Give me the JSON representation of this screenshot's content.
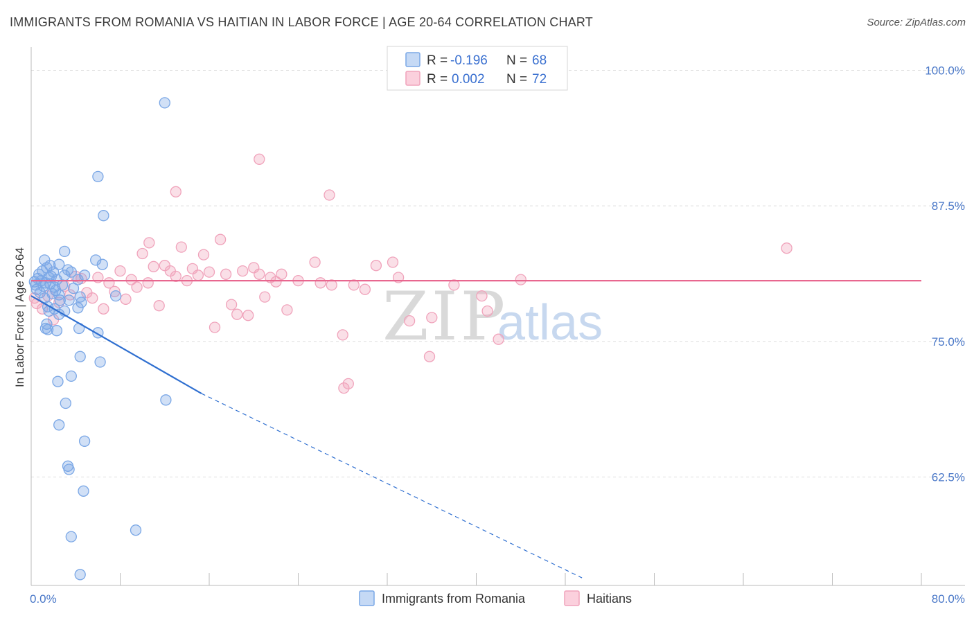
{
  "title": "IMMIGRANTS FROM ROMANIA VS HAITIAN IN LABOR FORCE | AGE 20-64 CORRELATION CHART",
  "source": "Source: ZipAtlas.com",
  "watermark": {
    "zip": "ZIP",
    "atlas": "atlas"
  },
  "colors": {
    "blue": "#7aa7e6",
    "blue_line": "#2f6fd0",
    "pink": "#f0a3bb",
    "pink_line": "#e8678f",
    "grid": "#dddddd"
  },
  "chart_data": {
    "type": "scatter",
    "title": "IMMIGRANTS FROM ROMANIA VS HAITIAN IN LABOR FORCE | AGE 20-64 CORRELATION CHART",
    "ylabel": "In Labor Force | Age 20-64",
    "xlim": [
      0,
      80
    ],
    "ylim": [
      52.5,
      101.5
    ],
    "x_tick_labels": [
      {
        "v": 0,
        "label": "0.0%"
      },
      {
        "v": 80,
        "label": "80.0%"
      }
    ],
    "y_tick_labels": [
      {
        "v": 100,
        "label": "100.0%"
      },
      {
        "v": 87.5,
        "label": "87.5%"
      },
      {
        "v": 75,
        "label": "75.0%"
      },
      {
        "v": 62.5,
        "label": "62.5%"
      }
    ],
    "legend": [
      {
        "r_label": "R = ",
        "r_value": "-0.196",
        "n_label": "N = ",
        "n_value": "68"
      },
      {
        "r_label": "R = ",
        "r_value": "0.002",
        "n_label": "N = ",
        "n_value": "72"
      }
    ],
    "series": [
      {
        "name": "Immigrants from Romania",
        "trend": {
          "solid": [
            [
              0,
              79.2
            ],
            [
              15.3,
              70.2
            ]
          ],
          "dashed": [
            [
              15.3,
              70.2
            ],
            [
              49.5,
              53.2
            ]
          ]
        },
        "points": [
          [
            0.3,
            80.5
          ],
          [
            0.4,
            80.2
          ],
          [
            0.5,
            79.8
          ],
          [
            0.6,
            80.8
          ],
          [
            0.7,
            81.2
          ],
          [
            0.8,
            79.5
          ],
          [
            0.9,
            80.6
          ],
          [
            1.0,
            81.5
          ],
          [
            1.1,
            80.1
          ],
          [
            1.2,
            79.0
          ],
          [
            1.3,
            80.4
          ],
          [
            1.4,
            81.8
          ],
          [
            1.5,
            78.2
          ],
          [
            1.6,
            80.9
          ],
          [
            1.7,
            80.3
          ],
          [
            1.8,
            81.0
          ],
          [
            1.9,
            79.4
          ],
          [
            2.0,
            81.4
          ],
          [
            2.1,
            80.0
          ],
          [
            2.2,
            79.7
          ],
          [
            2.3,
            80.7
          ],
          [
            2.5,
            79.3
          ],
          [
            2.6,
            78.8
          ],
          [
            2.8,
            80.2
          ],
          [
            3.0,
            81.1
          ],
          [
            1.2,
            82.5
          ],
          [
            1.7,
            82.0
          ],
          [
            2.5,
            82.1
          ],
          [
            3.0,
            83.3
          ],
          [
            3.3,
            81.6
          ],
          [
            3.6,
            81.4
          ],
          [
            3.8,
            79.9
          ],
          [
            4.2,
            80.7
          ],
          [
            4.4,
            79.1
          ],
          [
            4.5,
            78.6
          ],
          [
            2.1,
            78.0
          ],
          [
            2.5,
            77.5
          ],
          [
            3.0,
            77.8
          ],
          [
            1.6,
            77.8
          ],
          [
            1.4,
            76.6
          ],
          [
            1.3,
            76.2
          ],
          [
            1.5,
            76.1
          ],
          [
            2.3,
            76.0
          ],
          [
            3.4,
            78.8
          ],
          [
            4.2,
            78.1
          ],
          [
            4.8,
            81.1
          ],
          [
            5.8,
            82.5
          ],
          [
            6.4,
            82.1
          ],
          [
            7.6,
            79.2
          ],
          [
            4.3,
            76.2
          ],
          [
            6.0,
            75.8
          ],
          [
            4.4,
            73.6
          ],
          [
            6.2,
            73.1
          ],
          [
            2.4,
            71.3
          ],
          [
            3.6,
            71.8
          ],
          [
            3.1,
            69.3
          ],
          [
            2.5,
            67.3
          ],
          [
            4.8,
            65.8
          ],
          [
            3.3,
            63.5
          ],
          [
            3.4,
            63.2
          ],
          [
            4.7,
            61.2
          ],
          [
            3.6,
            57.0
          ],
          [
            4.4,
            53.5
          ],
          [
            6.0,
            90.2
          ],
          [
            12.0,
            97.0
          ],
          [
            6.5,
            86.6
          ],
          [
            12.1,
            69.6
          ],
          [
            9.4,
            57.6
          ]
        ]
      },
      {
        "name": "Haitians",
        "trend": {
          "solid": [
            [
              0,
              80.6
            ],
            [
              80,
              80.6
            ]
          ]
        },
        "points": [
          [
            0.3,
            79.0
          ],
          [
            0.5,
            78.5
          ],
          [
            1.0,
            78.0
          ],
          [
            1.5,
            79.2
          ],
          [
            2.0,
            77.0
          ],
          [
            2.5,
            78.6
          ],
          [
            3.0,
            80.1
          ],
          [
            3.5,
            79.3
          ],
          [
            4.0,
            81.0
          ],
          [
            4.5,
            80.8
          ],
          [
            5.0,
            79.5
          ],
          [
            5.5,
            79.0
          ],
          [
            6.0,
            80.9
          ],
          [
            6.5,
            78.0
          ],
          [
            7.0,
            80.4
          ],
          [
            7.5,
            79.6
          ],
          [
            8.0,
            81.5
          ],
          [
            8.5,
            78.9
          ],
          [
            9.0,
            80.7
          ],
          [
            9.5,
            80.0
          ],
          [
            10.0,
            83.1
          ],
          [
            10.5,
            80.4
          ],
          [
            11.0,
            81.9
          ],
          [
            11.5,
            78.3
          ],
          [
            12.0,
            82.0
          ],
          [
            12.5,
            81.5
          ],
          [
            13.0,
            81.0
          ],
          [
            13.5,
            83.7
          ],
          [
            14.0,
            80.6
          ],
          [
            14.5,
            81.7
          ],
          [
            15.0,
            81.1
          ],
          [
            15.5,
            83.0
          ],
          [
            16.0,
            81.4
          ],
          [
            16.5,
            76.3
          ],
          [
            17.0,
            84.4
          ],
          [
            17.5,
            81.2
          ],
          [
            18.0,
            78.4
          ],
          [
            18.5,
            77.5
          ],
          [
            19.0,
            81.5
          ],
          [
            19.5,
            77.4
          ],
          [
            20.0,
            81.8
          ],
          [
            20.5,
            81.2
          ],
          [
            21.0,
            79.1
          ],
          [
            21.5,
            80.9
          ],
          [
            22.0,
            80.5
          ],
          [
            22.5,
            81.2
          ],
          [
            23.0,
            77.9
          ],
          [
            24.0,
            80.6
          ],
          [
            25.5,
            82.3
          ],
          [
            26.0,
            80.4
          ],
          [
            27.0,
            80.2
          ],
          [
            28.0,
            75.6
          ],
          [
            29.0,
            80.2
          ],
          [
            30.0,
            79.8
          ],
          [
            31.0,
            82.0
          ],
          [
            32.5,
            82.3
          ],
          [
            33.0,
            80.9
          ],
          [
            34.0,
            76.9
          ],
          [
            36.0,
            77.2
          ],
          [
            38.0,
            80.2
          ],
          [
            40.5,
            79.2
          ],
          [
            41.0,
            77.8
          ],
          [
            42.0,
            75.2
          ],
          [
            44.0,
            80.7
          ],
          [
            13.0,
            88.8
          ],
          [
            10.6,
            84.1
          ],
          [
            20.5,
            91.8
          ],
          [
            26.8,
            88.5
          ],
          [
            28.1,
            70.7
          ],
          [
            28.5,
            71.1
          ],
          [
            35.8,
            73.6
          ],
          [
            67.9,
            83.6
          ]
        ]
      }
    ]
  },
  "bottom_legend": [
    "Immigrants from Romania",
    "Haitians"
  ]
}
